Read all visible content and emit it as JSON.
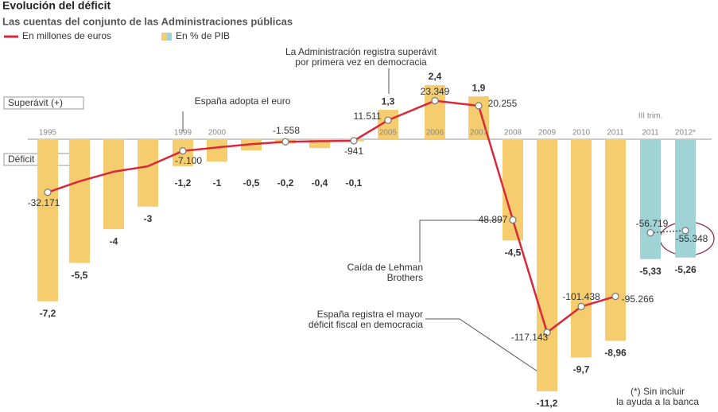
{
  "chart_data": {
    "type": "combo",
    "title": "Evolución del déficit",
    "subtitle": "Las cuentas del conjunto de las Administraciones públicas",
    "categories": [
      "1995",
      null,
      null,
      null,
      "1999",
      "2000",
      null,
      null,
      null,
      null,
      "2005",
      "2006",
      "2007",
      "2008",
      "2009",
      "2010",
      "2011",
      "2011",
      "2012*"
    ],
    "bars": {
      "name": "En % de PIB",
      "colors": [
        "#f5cd6e",
        "#f5cd6e",
        "#f5cd6e",
        "#f5cd6e",
        "#f5cd6e",
        "#f5cd6e",
        "#f5cd6e",
        "#f5cd6e",
        "#f5cd6e",
        "#f5cd6e",
        "#f5cd6e",
        "#f5cd6e",
        "#f5cd6e",
        "#f5cd6e",
        "#f5cd6e",
        "#f5cd6e",
        "#f5cd6e",
        "#9fd3d6",
        "#9fd3d6"
      ],
      "values": [
        -7.2,
        -5.5,
        -4,
        -3,
        -1.2,
        -1,
        -0.5,
        -0.2,
        -0.4,
        -0.1,
        1.3,
        2.4,
        1.9,
        -4.5,
        -11.2,
        -9.7,
        -8.96,
        -5.33,
        -5.26
      ],
      "value_labels": [
        "-7,2",
        "-5,5",
        "-4",
        "-3",
        "-1,2",
        "-1",
        "-0,5",
        "-0,2",
        "-0,4",
        "-0,1",
        "1,3",
        "2,4",
        "1,9",
        "-4,5",
        "-11,2",
        "-9,7",
        "-8,96",
        "-5,33",
        "-5,26"
      ]
    },
    "ylim": [
      -12,
      3
    ],
    "series": [
      {
        "name": "En millones de euros",
        "color": "#d9283a",
        "axis": "y2",
        "values": [
          -32171,
          -25500,
          -19700,
          -16400,
          -7100,
          -5000,
          -3000,
          -1558,
          -1200,
          -941,
          11511,
          23349,
          20255,
          -48897,
          -117143,
          -101438,
          -95266,
          null,
          null
        ],
        "value_labels": [
          "-32.171",
          null,
          null,
          null,
          "-7.100",
          null,
          null,
          "-1.558",
          null,
          "-941",
          "11.511",
          "23.349",
          "20.255",
          "-48.897",
          "-117.143",
          "-101.438",
          "-95.266",
          null,
          null
        ]
      },
      {
        "color": "#555555",
        "axis": "y2",
        "dashed": true,
        "values": [
          null,
          null,
          null,
          null,
          null,
          null,
          null,
          null,
          null,
          null,
          null,
          null,
          null,
          null,
          null,
          null,
          null,
          -56719,
          -55348
        ],
        "value_labels": [
          null,
          null,
          null,
          null,
          null,
          null,
          null,
          null,
          null,
          null,
          null,
          null,
          null,
          null,
          null,
          null,
          null,
          "-56.719",
          "-55.348"
        ]
      }
    ],
    "y2lim": [
      -163700,
      41000
    ],
    "axis_labels": [
      "Superávit (+)",
      "Déficit (-)"
    ],
    "group_label": "III trim.",
    "annotations": [
      {
        "lines": [
          "España adopta el euro"
        ]
      },
      {
        "lines": [
          "La Administración registra superávit",
          "por primera vez en democracia"
        ]
      },
      {
        "lines": [
          "Caída de Lehman",
          "Brothers"
        ]
      },
      {
        "lines": [
          "España registra el mayor",
          "déficit fiscal en democracia"
        ]
      },
      {
        "lines": [
          "(*) Sin incluir",
          "la ayuda a la banca"
        ]
      }
    ]
  }
}
